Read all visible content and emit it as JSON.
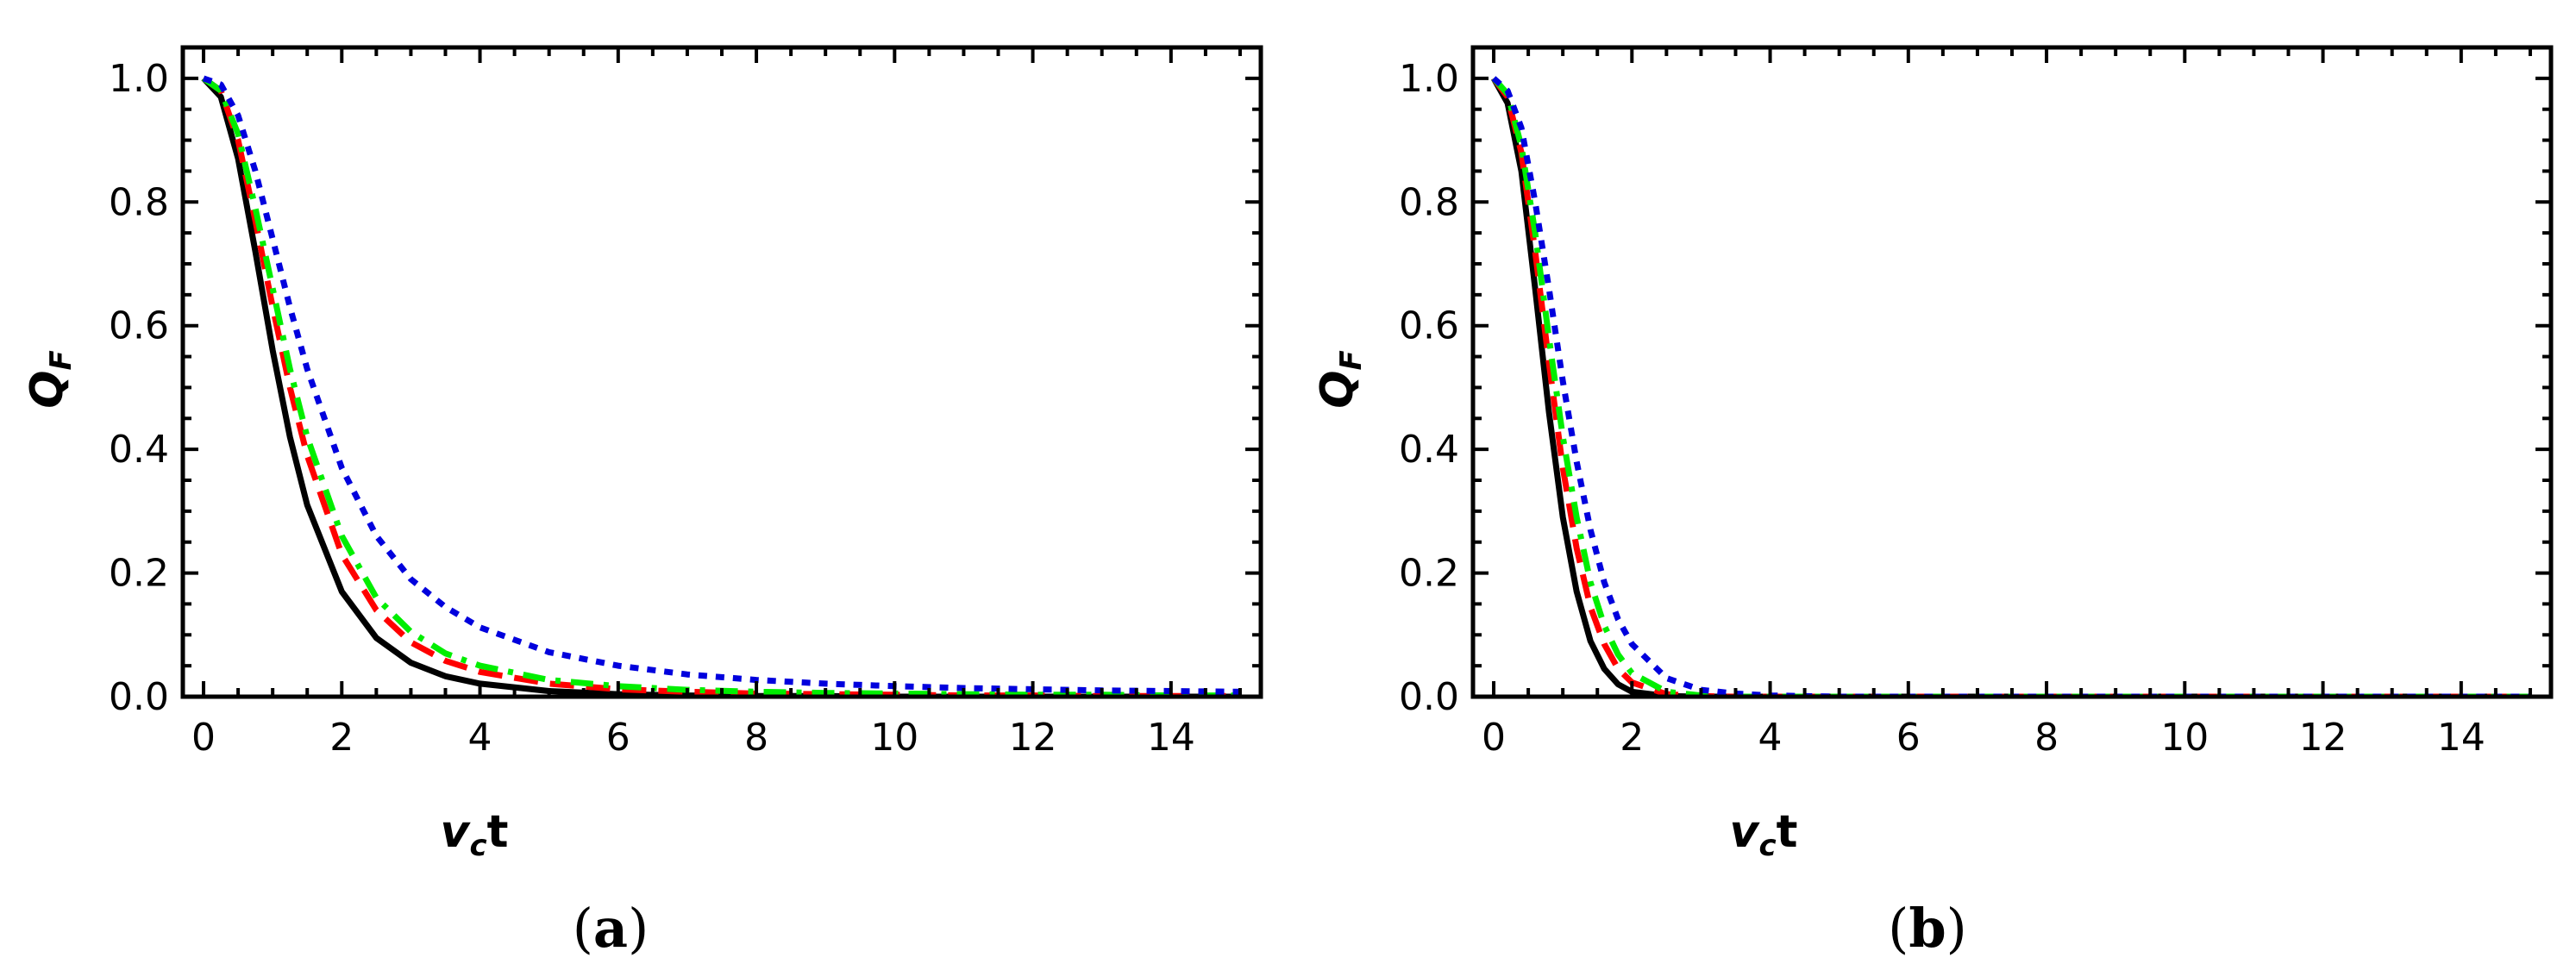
{
  "panels": [
    {
      "label_open": "(",
      "label_letter": "a",
      "label_close": ")"
    },
    {
      "label_open": "(",
      "label_letter": "b",
      "label_close": ")"
    }
  ],
  "axis": {
    "xlabel_main": "v",
    "xlabel_sub": "c",
    "xlabel_tail": "t",
    "ylabel_main": "Q",
    "ylabel_sub": "F"
  },
  "series_styles": [
    {
      "color": "#000000",
      "style": "solid"
    },
    {
      "color": "#ff0000",
      "style": "dashed"
    },
    {
      "color": "#00ee00",
      "style": "dash-dot"
    },
    {
      "color": "#0000dd",
      "style": "dotted"
    }
  ],
  "chart_data": [
    {
      "type": "line",
      "title": "",
      "xlabel": "v_c t",
      "ylabel": "Q_F",
      "xlim": [
        -0.3,
        15.3
      ],
      "ylim": [
        0,
        1.05
      ],
      "xticks": [
        0,
        2,
        4,
        6,
        8,
        10,
        12,
        14
      ],
      "yticks": [
        0.0,
        0.2,
        0.4,
        0.6,
        0.8,
        1.0
      ],
      "xtick_labels": [
        "0",
        "2",
        "4",
        "6",
        "8",
        "10",
        "12",
        "14"
      ],
      "ytick_labels": [
        "0.0",
        "0.2",
        "0.4",
        "0.6",
        "0.8",
        "1.0"
      ],
      "grid": false,
      "x": [
        0,
        0.25,
        0.5,
        0.75,
        1,
        1.25,
        1.5,
        2,
        2.5,
        3,
        3.5,
        4,
        5,
        6,
        7,
        8,
        9,
        10,
        11,
        12,
        13,
        14,
        15
      ],
      "series": [
        {
          "values": [
            1.0,
            0.97,
            0.87,
            0.72,
            0.56,
            0.42,
            0.31,
            0.17,
            0.095,
            0.055,
            0.033,
            0.021,
            0.009,
            0.004,
            0.002,
            0.001,
            0.001,
            0.0,
            0.0,
            0.0,
            0.0,
            0.0,
            0.0
          ]
        },
        {
          "values": [
            1.0,
            0.98,
            0.9,
            0.77,
            0.63,
            0.5,
            0.39,
            0.23,
            0.14,
            0.088,
            0.058,
            0.04,
            0.021,
            0.012,
            0.008,
            0.005,
            0.004,
            0.003,
            0.002,
            0.002,
            0.001,
            0.001,
            0.001
          ]
        },
        {
          "values": [
            1.0,
            0.98,
            0.91,
            0.79,
            0.66,
            0.53,
            0.42,
            0.26,
            0.16,
            0.105,
            0.07,
            0.05,
            0.027,
            0.017,
            0.011,
            0.008,
            0.006,
            0.005,
            0.004,
            0.003,
            0.003,
            0.002,
            0.002
          ]
        },
        {
          "values": [
            1.0,
            0.99,
            0.94,
            0.85,
            0.74,
            0.63,
            0.53,
            0.37,
            0.26,
            0.19,
            0.145,
            0.112,
            0.072,
            0.05,
            0.036,
            0.027,
            0.021,
            0.017,
            0.014,
            0.012,
            0.01,
            0.009,
            0.008
          ]
        }
      ]
    },
    {
      "type": "line",
      "title": "",
      "xlabel": "v_c t",
      "ylabel": "Q_F",
      "xlim": [
        -0.3,
        15.3
      ],
      "ylim": [
        0,
        1.05
      ],
      "xticks": [
        0,
        2,
        4,
        6,
        8,
        10,
        12,
        14
      ],
      "yticks": [
        0.0,
        0.2,
        0.4,
        0.6,
        0.8,
        1.0
      ],
      "xtick_labels": [
        "0",
        "2",
        "4",
        "6",
        "8",
        "10",
        "12",
        "14"
      ],
      "ytick_labels": [
        "0.0",
        "0.2",
        "0.4",
        "0.6",
        "0.8",
        "1.0"
      ],
      "grid": false,
      "x": [
        0,
        0.2,
        0.4,
        0.6,
        0.8,
        1,
        1.2,
        1.4,
        1.6,
        1.8,
        2,
        2.5,
        3,
        3.5,
        4,
        5,
        6,
        7,
        8,
        10,
        12,
        15
      ],
      "series": [
        {
          "values": [
            1.0,
            0.96,
            0.85,
            0.66,
            0.46,
            0.29,
            0.17,
            0.09,
            0.045,
            0.02,
            0.008,
            0.001,
            0.0,
            0.0,
            0.0,
            0.0,
            0.0,
            0.0,
            0.0,
            0.0,
            0.0,
            0.0
          ]
        },
        {
          "values": [
            1.0,
            0.97,
            0.88,
            0.72,
            0.54,
            0.37,
            0.24,
            0.145,
            0.085,
            0.045,
            0.023,
            0.004,
            0.001,
            0.0,
            0.0,
            0.0,
            0.0,
            0.0,
            0.0,
            0.0,
            0.0,
            0.0
          ]
        },
        {
          "values": [
            1.0,
            0.975,
            0.89,
            0.75,
            0.58,
            0.42,
            0.29,
            0.185,
            0.115,
            0.068,
            0.038,
            0.008,
            0.002,
            0.0,
            0.0,
            0.0,
            0.0,
            0.0,
            0.0,
            0.0,
            0.0,
            0.0
          ]
        },
        {
          "values": [
            1.0,
            0.98,
            0.92,
            0.8,
            0.66,
            0.51,
            0.38,
            0.27,
            0.185,
            0.125,
            0.085,
            0.03,
            0.011,
            0.005,
            0.002,
            0.0,
            0.0,
            0.0,
            0.0,
            0.0,
            0.0,
            0.0
          ]
        }
      ]
    }
  ]
}
